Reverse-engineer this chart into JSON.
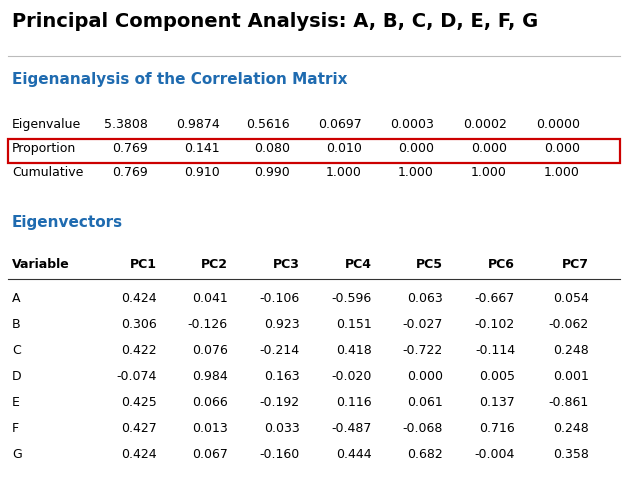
{
  "title": "Principal Component Analysis: A, B, C, D, E, F, G",
  "section1_title": "Eigenanalysis of the Correlation Matrix",
  "section2_title": "Eigenvectors",
  "eigen_rows": [
    {
      "label": "Eigenvalue",
      "values": [
        "5.3808",
        "0.9874",
        "0.5616",
        "0.0697",
        "0.0003",
        "0.0002",
        "0.0000"
      ]
    },
    {
      "label": "Proportion",
      "values": [
        "0.769",
        "0.141",
        "0.080",
        "0.010",
        "0.000",
        "0.000",
        "0.000"
      ]
    },
    {
      "label": "Cumulative",
      "values": [
        "0.769",
        "0.910",
        "0.990",
        "1.000",
        "1.000",
        "1.000",
        "1.000"
      ]
    }
  ],
  "proportion_row_index": 1,
  "evec_headers": [
    "Variable",
    "PC1",
    "PC2",
    "PC3",
    "PC4",
    "PC5",
    "PC6",
    "PC7"
  ],
  "evec_rows": [
    {
      "var": "A",
      "vals": [
        "0.424",
        "0.041",
        "-0.106",
        "-0.596",
        "0.063",
        "-0.667",
        "0.054"
      ]
    },
    {
      "var": "B",
      "vals": [
        "0.306",
        "-0.126",
        "0.923",
        "0.151",
        "-0.027",
        "-0.102",
        "-0.062"
      ]
    },
    {
      "var": "C",
      "vals": [
        "0.422",
        "0.076",
        "-0.214",
        "0.418",
        "-0.722",
        "-0.114",
        "0.248"
      ]
    },
    {
      "var": "D",
      "vals": [
        "-0.074",
        "0.984",
        "0.163",
        "-0.020",
        "0.000",
        "0.005",
        "0.001"
      ]
    },
    {
      "var": "E",
      "vals": [
        "0.425",
        "0.066",
        "-0.192",
        "0.116",
        "0.061",
        "0.137",
        "-0.861"
      ]
    },
    {
      "var": "F",
      "vals": [
        "0.427",
        "0.013",
        "0.033",
        "-0.487",
        "-0.068",
        "0.716",
        "0.248"
      ]
    },
    {
      "var": "G",
      "vals": [
        "0.424",
        "0.067",
        "-0.160",
        "0.444",
        "0.682",
        "-0.004",
        "0.358"
      ]
    }
  ],
  "title_color": "#000000",
  "section_color": "#1F6BB0",
  "text_color": "#000000",
  "proportion_rect_color": "#CC0000",
  "bg_color": "#FFFFFF",
  "title_fontsize": 14,
  "section_fontsize": 11,
  "table_fontsize": 9,
  "header_fontsize": 9,
  "fig_width": 6.27,
  "fig_height": 5.01,
  "dpi": 100
}
